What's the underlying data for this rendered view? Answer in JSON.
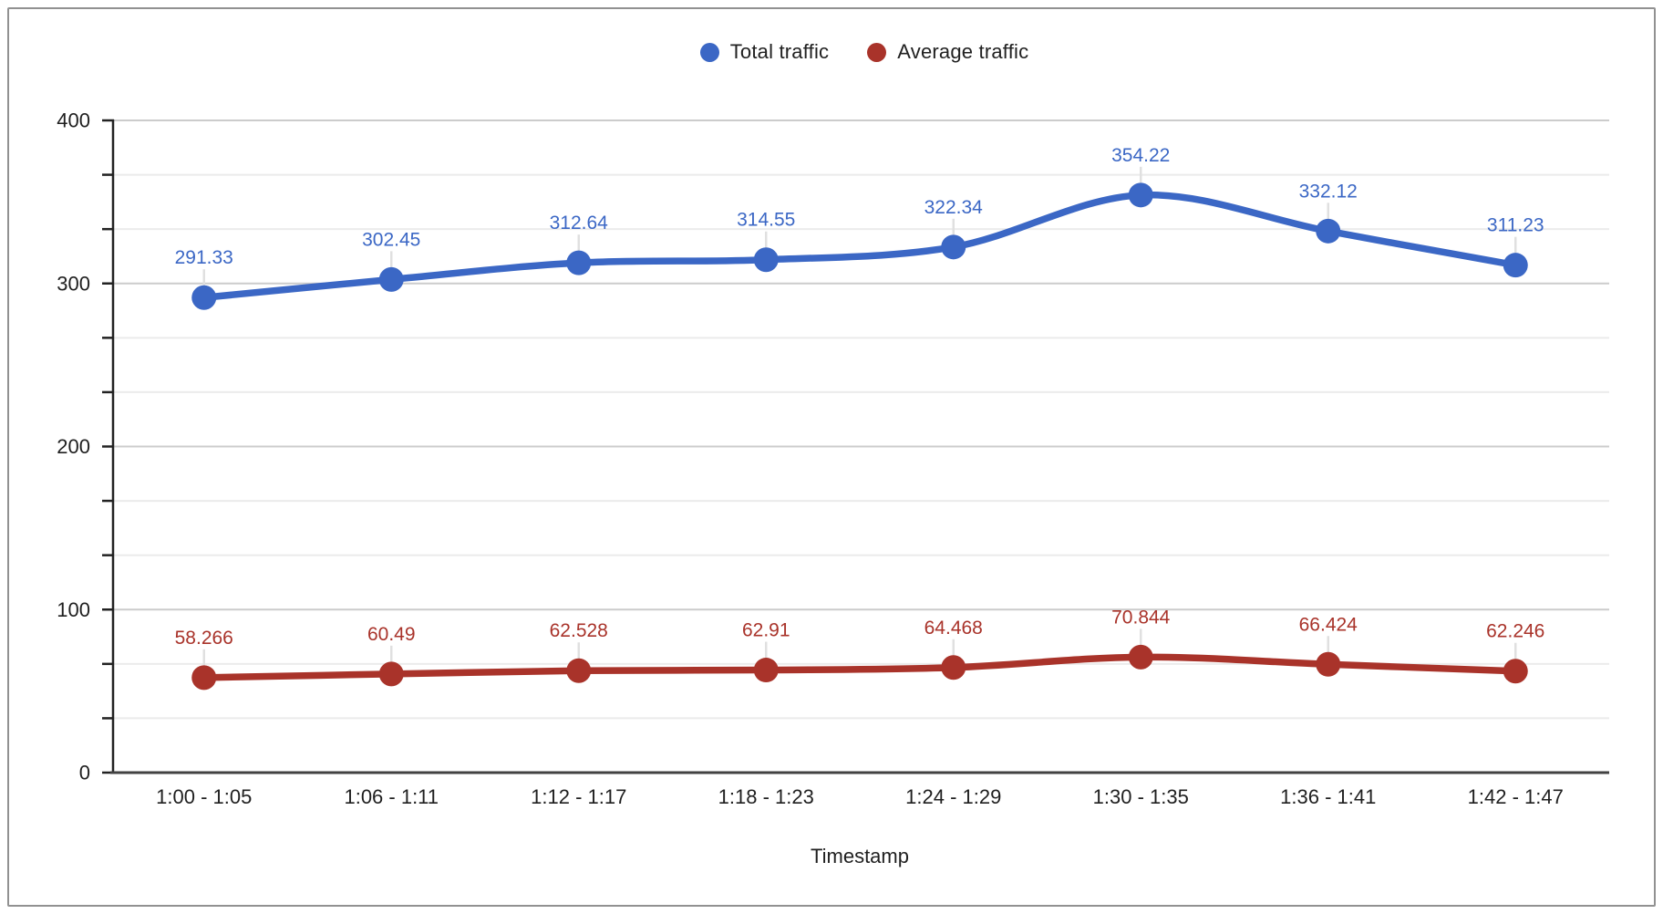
{
  "frame": {
    "background": "#ffffff",
    "border_color": "#919191"
  },
  "legend": {
    "position": "top",
    "items": [
      {
        "label": "Total traffic",
        "color": "#3B67C5"
      },
      {
        "label": "Average traffic",
        "color": "#A9332A"
      }
    ]
  },
  "chart_data": {
    "type": "line",
    "smooth": true,
    "title": "",
    "xlabel": "Timestamp",
    "ylabel": "",
    "categories": [
      "1:00 - 1:05",
      "1:06 - 1:11",
      "1:12 - 1:17",
      "1:18 - 1:23",
      "1:24 - 1:29",
      "1:30 - 1:35",
      "1:36 - 1:41",
      "1:42 - 1:47"
    ],
    "series": [
      {
        "name": "Total traffic",
        "color": "#3B67C5",
        "values": [
          291.33,
          302.45,
          312.64,
          314.55,
          322.34,
          354.22,
          332.12,
          311.23
        ],
        "point_labels": [
          "291.33",
          "302.45",
          "312.64",
          "314.55",
          "322.34",
          "354.22",
          "332.12",
          "311.23"
        ]
      },
      {
        "name": "Average traffic",
        "color": "#A9332A",
        "values": [
          58.266,
          60.49,
          62.528,
          62.91,
          64.468,
          70.844,
          66.424,
          62.246
        ],
        "point_labels": [
          "58.266",
          "60.49",
          "62.528",
          "62.91",
          "64.468",
          "70.844",
          "66.424",
          "62.246"
        ]
      }
    ],
    "ylim": [
      0,
      400
    ],
    "y_major_ticks": [
      "0",
      "100",
      "200",
      "300",
      "400"
    ],
    "y_minor_divisions_per_major": 3,
    "grid": true,
    "legend_position": "top",
    "grid_major_color": "#CCCCCC",
    "grid_minor_color": "#EBEBEB",
    "axis_color": "#222222",
    "baseline_color": "#424242",
    "tick_label_color": "#1F1F1F",
    "leader_line_color": "#E0E0E0"
  }
}
